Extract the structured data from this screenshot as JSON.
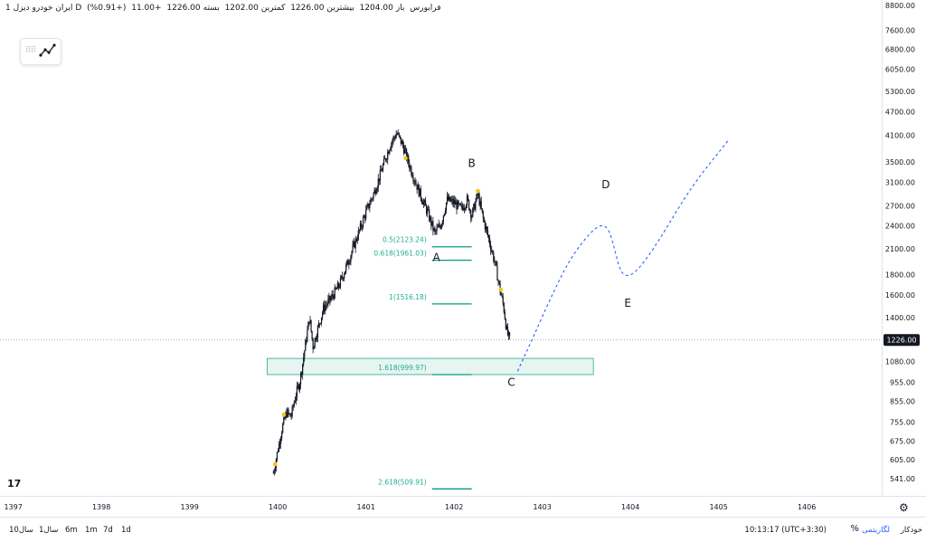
{
  "header": {
    "title": "ایران خودرو دیزل",
    "interval": "1D",
    "exchange": "فرابورس",
    "open_label": "باز",
    "open_value": "1204.00",
    "high_label": "بیشترین",
    "high_value": "1226.00",
    "low_label": "کمترین",
    "low_value": "1202.00",
    "close_label": "بسته",
    "close_value": "1226.00",
    "change": "+11.00",
    "change_pct": "(+0.91%)"
  },
  "chart_data": {
    "type": "candlestick",
    "series_name": "ایران خودرو دیزل",
    "y_scale": "log",
    "ylim": [
      500,
      8800
    ],
    "xlim": [
      1396.85,
      1406.85
    ],
    "x_ticks": [
      "1397",
      "1398",
      "1399",
      "1400",
      "1401",
      "1402",
      "1403",
      "1404",
      "1405",
      "1406"
    ],
    "y_ticks": [
      "8800.00",
      "7600.00",
      "6800.00",
      "6050.00",
      "5300.00",
      "4700.00",
      "4100.00",
      "3500.00",
      "3100.00",
      "2700.00",
      "2400.00",
      "2100.00",
      "1800.00",
      "1600.00",
      "1400.00",
      "1080.00",
      "955.00",
      "855.00",
      "755.00",
      "675.00",
      "605.00",
      "541.00"
    ],
    "last_price_label": "1226.00",
    "last_price": 1226,
    "price_path": [
      [
        1399.95,
        560
      ],
      [
        1400.0,
        640
      ],
      [
        1400.05,
        730
      ],
      [
        1400.1,
        800
      ],
      [
        1400.15,
        780
      ],
      [
        1400.2,
        880
      ],
      [
        1400.25,
        960
      ],
      [
        1400.28,
        1060
      ],
      [
        1400.32,
        1220
      ],
      [
        1400.36,
        1400
      ],
      [
        1400.4,
        1180
      ],
      [
        1400.45,
        1300
      ],
      [
        1400.52,
        1480
      ],
      [
        1400.6,
        1560
      ],
      [
        1400.7,
        1700
      ],
      [
        1400.8,
        1950
      ],
      [
        1400.9,
        2250
      ],
      [
        1401.0,
        2600
      ],
      [
        1401.1,
        2950
      ],
      [
        1401.2,
        3450
      ],
      [
        1401.28,
        3900
      ],
      [
        1401.35,
        4150
      ],
      [
        1401.42,
        3850
      ],
      [
        1401.5,
        3400
      ],
      [
        1401.6,
        2950
      ],
      [
        1401.7,
        2600
      ],
      [
        1401.78,
        2300
      ],
      [
        1401.85,
        2420
      ],
      [
        1401.92,
        2800
      ],
      [
        1402.0,
        2750
      ],
      [
        1402.08,
        2650
      ],
      [
        1402.15,
        2800
      ],
      [
        1402.2,
        2550
      ],
      [
        1402.27,
        2900
      ],
      [
        1402.33,
        2500
      ],
      [
        1402.4,
        2200
      ],
      [
        1402.47,
        1900
      ],
      [
        1402.52,
        1650
      ],
      [
        1402.56,
        1500
      ],
      [
        1402.6,
        1280
      ],
      [
        1402.63,
        1226
      ]
    ],
    "markers": [
      [
        1399.97,
        590
      ],
      [
        1400.07,
        790
      ],
      [
        1401.45,
        3580
      ],
      [
        1402.27,
        2950
      ],
      [
        1402.53,
        1650
      ]
    ],
    "projection": [
      [
        1402.72,
        1020
      ],
      [
        1402.9,
        1250
      ],
      [
        1403.1,
        1580
      ],
      [
        1403.3,
        1950
      ],
      [
        1403.5,
        2250
      ],
      [
        1403.65,
        2420
      ],
      [
        1403.75,
        2380
      ],
      [
        1403.82,
        2100
      ],
      [
        1403.88,
        1850
      ],
      [
        1403.95,
        1780
      ],
      [
        1404.05,
        1820
      ],
      [
        1404.2,
        2000
      ],
      [
        1404.4,
        2350
      ],
      [
        1404.6,
        2800
      ],
      [
        1404.8,
        3250
      ],
      [
        1405.0,
        3700
      ],
      [
        1405.12,
        4000
      ]
    ],
    "wave_labels": [
      {
        "text": "B",
        "x": 1402.2,
        "y": 3400
      },
      {
        "text": "A",
        "x": 1401.8,
        "y": 1950
      },
      {
        "text": "C",
        "x": 1402.65,
        "y": 935
      },
      {
        "text": "D",
        "x": 1403.72,
        "y": 3000
      },
      {
        "text": "E",
        "x": 1403.97,
        "y": 1490
      }
    ],
    "fib_levels": [
      {
        "label": "0.5(2123.24)",
        "value": 2123.24
      },
      {
        "label": "0.618(1961.03)",
        "value": 1961.03
      },
      {
        "label": "1(1516.18)",
        "value": 1516.18
      },
      {
        "label": "1.618(999.97)",
        "value": 999.97
      },
      {
        "label": "2.618(509.91)",
        "value": 509.91
      }
    ],
    "fib_x_range": [
      1401.75,
      1402.2
    ],
    "zone": {
      "y_low": 1000,
      "y_high": 1100,
      "x_start": 1399.88,
      "x_end": 1403.58
    },
    "colors": {
      "candle": "#131722",
      "fib": "#089981",
      "fib_text": "#22ab94",
      "projection": "#2962ff",
      "marker": "#f5c518",
      "zone_fill": "#e6f5f0",
      "zone_border": "#22ab94"
    }
  },
  "bottom": {
    "timeframes": [
      "1d",
      "7d",
      "1m",
      "6m",
      "سال1",
      "سال10"
    ],
    "clock": "10:13:17 (UTC+3:30)",
    "percent": "%",
    "log_label": "لگاریتمی",
    "auto_label": "خودکار"
  }
}
